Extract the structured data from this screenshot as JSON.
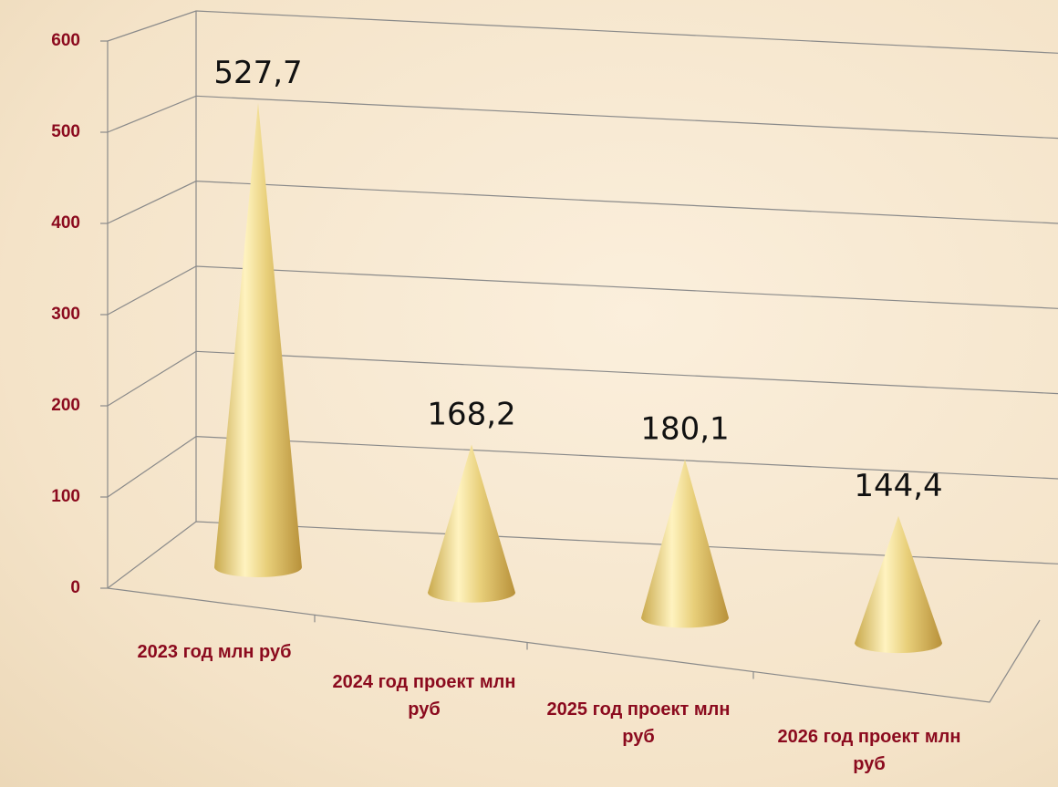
{
  "chart_data": {
    "type": "cone",
    "categories": [
      "2023 год млн руб",
      "2024 год проект млн руб",
      "2025 год проект млн руб",
      "2026 год проект млн руб"
    ],
    "values": [
      527.7,
      168.2,
      180.1,
      144.4
    ],
    "value_labels": [
      "527,7",
      "168,2",
      "180,1",
      "144,4"
    ],
    "color": "#e8cf7a",
    "ylim": [
      0,
      600
    ],
    "yticks": [
      0,
      100,
      200,
      300,
      400,
      500,
      600
    ],
    "grid": true
  }
}
